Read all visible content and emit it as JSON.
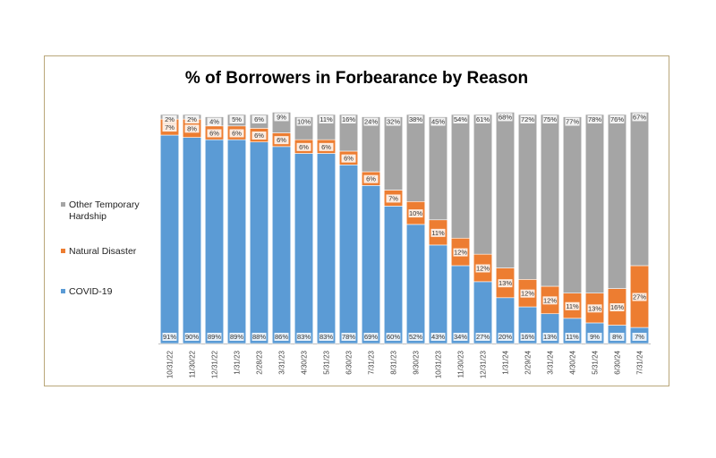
{
  "chart_data": {
    "type": "bar",
    "stacked": true,
    "title": "% of Borrowers in Forbearance by Reason",
    "xlabel": "",
    "ylabel": "",
    "ylim": [
      0,
      100
    ],
    "grid": false,
    "legend_position": "left",
    "categories": [
      "10/31/22",
      "11/30/22",
      "12/31/22",
      "1/31/23",
      "2/28/23",
      "3/31/23",
      "4/30/23",
      "5/31/23",
      "6/30/23",
      "7/31/23",
      "8/31/23",
      "9/30/23",
      "10/31/23",
      "11/30/23",
      "12/31/23",
      "1/31/24",
      "2/29/24",
      "3/31/24",
      "4/30/24",
      "5/31/24",
      "6/30/24",
      "7/31/24"
    ],
    "series": [
      {
        "name": "COVID-19",
        "color": "#5b9bd5",
        "values": [
          91,
          90,
          89,
          89,
          88,
          86,
          83,
          83,
          78,
          69,
          60,
          52,
          43,
          34,
          27,
          20,
          16,
          13,
          11,
          9,
          8,
          7
        ]
      },
      {
        "name": "Natural Disaster",
        "color": "#ed7d31",
        "values": [
          7,
          8,
          6,
          6,
          6,
          6,
          6,
          6,
          6,
          6,
          7,
          10,
          11,
          12,
          12,
          13,
          12,
          12,
          11,
          13,
          16,
          27
        ]
      },
      {
        "name": "Other Temporary Hardship",
        "color": "#a5a5a5",
        "values": [
          2,
          2,
          4,
          5,
          6,
          9,
          10,
          11,
          16,
          24,
          32,
          38,
          45,
          54,
          61,
          68,
          72,
          75,
          77,
          78,
          76,
          67
        ]
      }
    ]
  }
}
